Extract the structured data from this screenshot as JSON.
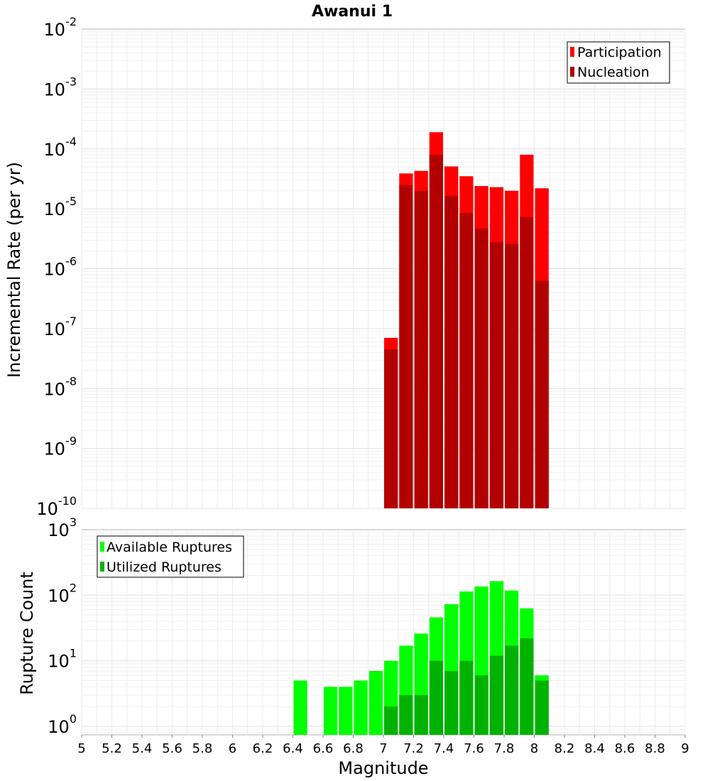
{
  "chart_data": [
    {
      "type": "bar",
      "scale": "log",
      "title": "Awanui 1",
      "ylabel": "Incremental Rate (per yr)",
      "xlabel": "Magnitude",
      "ylim_exp": [
        -10,
        -2
      ],
      "y_tick_base": "10",
      "y_tick_exps": [
        "-10",
        "-9",
        "-8",
        "-7",
        "-6",
        "-5",
        "-4",
        "-3",
        "-2"
      ],
      "xlim": [
        5,
        9
      ],
      "bin_width": 0.1,
      "legend_position": "top-right",
      "series": [
        {
          "name": "Participation",
          "color": "#ff0000",
          "x": [
            7.05,
            7.15,
            7.25,
            7.35,
            7.45,
            7.55,
            7.65,
            7.75,
            7.85,
            7.95,
            8.05
          ],
          "values": [
            7e-08,
            3.9e-05,
            4.3e-05,
            0.00019,
            5.1e-05,
            3.5e-05,
            2.4e-05,
            2.3e-05,
            2e-05,
            8e-05,
            2.2e-05
          ]
        },
        {
          "name": "Nucleation",
          "color": "#b20000",
          "x": [
            7.05,
            7.15,
            7.25,
            7.35,
            7.45,
            7.55,
            7.65,
            7.75,
            7.85,
            7.95,
            8.05
          ],
          "values": [
            4.5e-08,
            2.5e-05,
            2e-05,
            8e-05,
            1.65e-05,
            8.5e-06,
            4.7e-06,
            2.8e-06,
            2.6e-06,
            7.3e-06,
            6.3e-07
          ]
        }
      ]
    },
    {
      "type": "bar",
      "scale": "log",
      "title": "",
      "ylabel": "Rupture Count",
      "xlabel": "Magnitude",
      "ylim_exp": [
        -0.13,
        3
      ],
      "y_tick_base": "10",
      "y_tick_exps": [
        "0",
        "1",
        "2",
        "3"
      ],
      "xlim": [
        5,
        9
      ],
      "x_ticks": [
        "5",
        "5.2",
        "5.4",
        "5.6",
        "5.8",
        "6",
        "6.2",
        "6.4",
        "6.6",
        "6.8",
        "7",
        "7.2",
        "7.4",
        "7.6",
        "7.8",
        "8",
        "8.2",
        "8.4",
        "8.6",
        "8.8",
        "9"
      ],
      "bin_width": 0.1,
      "legend_position": "top-left",
      "series": [
        {
          "name": "Available Ruptures",
          "color": "#00ff00",
          "x": [
            6.45,
            6.65,
            6.75,
            6.85,
            6.95,
            7.05,
            7.15,
            7.25,
            7.35,
            7.45,
            7.55,
            7.65,
            7.75,
            7.85,
            7.95,
            8.05
          ],
          "values": [
            5,
            4,
            4,
            5,
            7,
            10,
            17,
            26,
            46,
            73,
            114,
            136,
            164,
            118,
            63,
            6
          ]
        },
        {
          "name": "Utilized Ruptures",
          "color": "#00b200",
          "x": [
            7.05,
            7.15,
            7.25,
            7.35,
            7.45,
            7.55,
            7.65,
            7.75,
            7.85,
            7.95,
            8.05
          ],
          "values": [
            2,
            3,
            3,
            10,
            7,
            10,
            6,
            12,
            17,
            22,
            5
          ]
        }
      ]
    }
  ]
}
